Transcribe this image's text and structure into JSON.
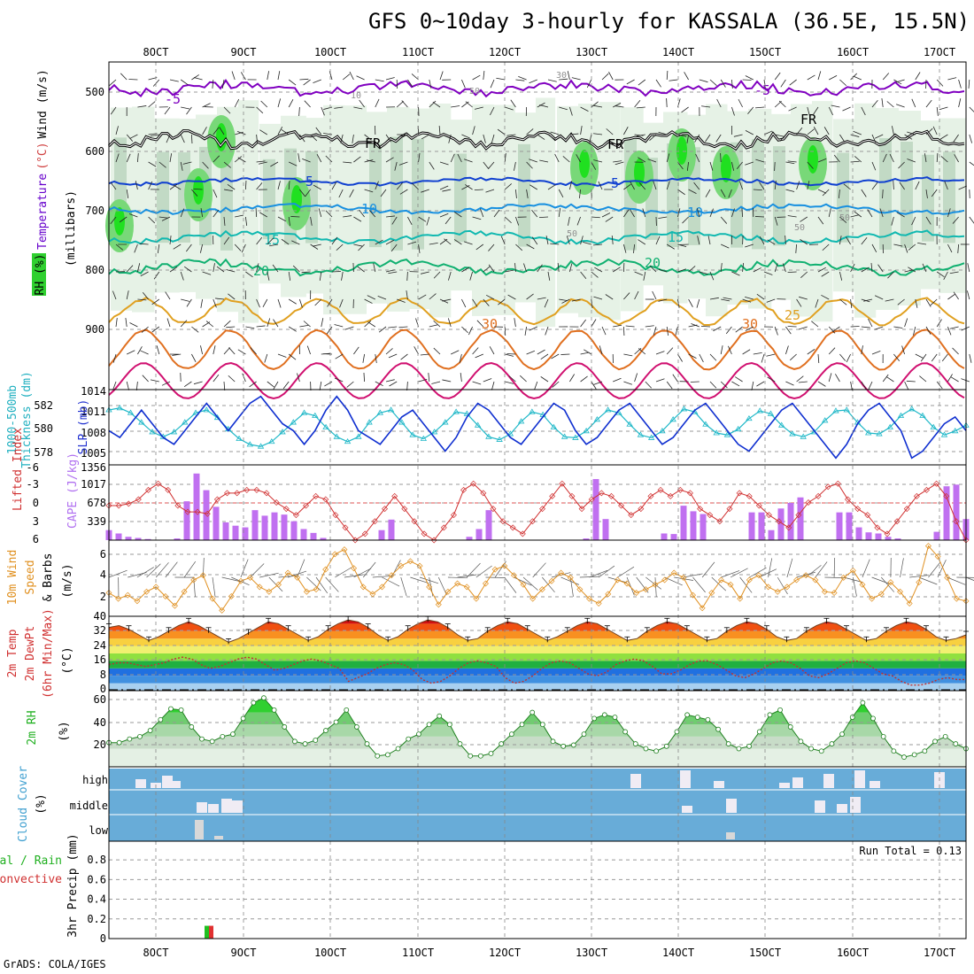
{
  "title": "GFS 0~10day 3-hourly for KASSALA (36.5E, 15.5N)",
  "footer": "GrADS: COLA/IGES",
  "date_ticks": [
    "8OCT",
    "9OCT",
    "10OCT",
    "11OCT",
    "12OCT",
    "13OCT",
    "14OCT",
    "15OCT",
    "16OCT",
    "17OCT"
  ],
  "panels": {
    "upper_air": {
      "ylabels": [
        {
          "text": "RH (%)",
          "color": "#00b000"
        },
        {
          "text": "Temperature",
          "color": "#6600cc"
        },
        {
          "text": "(°C)",
          "color": "#d04040"
        },
        {
          "text": "Wind (m/s)",
          "color": "#000000"
        },
        {
          "text": "(millibars)",
          "color": "#000000"
        }
      ],
      "pressure_ticks": [
        "500",
        "600",
        "700",
        "800",
        "900"
      ],
      "contour_labels": [
        {
          "text": "-5",
          "color": "#8000c0"
        },
        {
          "text": "-5",
          "color": "#8000c0"
        },
        {
          "text": "FR",
          "color": "#000000"
        },
        {
          "text": "FR",
          "color": "#000000"
        },
        {
          "text": "FR",
          "color": "#000000"
        },
        {
          "text": "5",
          "color": "#1040d0"
        },
        {
          "text": "5",
          "color": "#1040d0"
        },
        {
          "text": "10",
          "color": "#1890e0"
        },
        {
          "text": "10",
          "color": "#1890e0"
        },
        {
          "text": "15",
          "color": "#10b8b0"
        },
        {
          "text": "15",
          "color": "#10b8b0"
        },
        {
          "text": "20",
          "color": "#10b070"
        },
        {
          "text": "20",
          "color": "#10b070"
        },
        {
          "text": "30",
          "color": "#e07020"
        },
        {
          "text": "30",
          "color": "#e07020"
        },
        {
          "text": "25",
          "color": "#e0a020"
        },
        {
          "text": "30",
          "color": "#909090"
        },
        {
          "text": "10",
          "color": "#909090"
        },
        {
          "text": "50",
          "color": "#909090"
        },
        {
          "text": "50",
          "color": "#909090"
        },
        {
          "text": "50",
          "color": "#909090"
        },
        {
          "text": "50",
          "color": "#909090"
        }
      ]
    },
    "thickness_slp": {
      "ylabels": [
        {
          "text": "1000-500mb",
          "color": "#20b0c0"
        },
        {
          "text": "Thickness (dm)",
          "color": "#20b0c0"
        },
        {
          "text": "SLP (mb)",
          "color": "#2030d0"
        }
      ],
      "left_ticks": [
        "582",
        "580",
        "578"
      ],
      "right_ticks": [
        "1014",
        "1011",
        "1008",
        "1005"
      ]
    },
    "cape_li": {
      "ylabels": [
        {
          "text": "Lifted Index",
          "color": "#d03030"
        },
        {
          "text": "CAPE (J/kg)",
          "color": "#b070f0"
        }
      ],
      "left_ticks": [
        "-6",
        "-3",
        "0",
        "3",
        "6"
      ],
      "right_ticks": [
        "1356",
        "1017",
        "678",
        "339"
      ]
    },
    "wind10": {
      "ylabels": [
        {
          "text": "10m Wind",
          "color": "#e09020"
        },
        {
          "text": "Speed",
          "color": "#e09020"
        },
        {
          "text": "& Barbs",
          "color": "#000000"
        },
        {
          "text": "(m/s)",
          "color": "#000000"
        }
      ],
      "ticks": [
        "6",
        "4",
        "2"
      ]
    },
    "temp2m": {
      "ylabels": [
        {
          "text": "2m Temp",
          "color": "#d03030"
        },
        {
          "text": "2m DewPt",
          "color": "#d03030"
        },
        {
          "text": "(6hr Min/Max)",
          "color": "#d03030"
        },
        {
          "text": "(°C)",
          "color": "#000000"
        }
      ],
      "ticks": [
        "40",
        "32",
        "24",
        "16",
        "8",
        "0"
      ]
    },
    "rh2m": {
      "ylabels": [
        {
          "text": "2m RH",
          "color": "#20b020"
        },
        {
          "text": "(%)",
          "color": "#000000"
        }
      ],
      "ticks": [
        "60",
        "40",
        "20"
      ]
    },
    "cloud": {
      "ylabels": [
        {
          "text": "Cloud Cover",
          "color": "#40a0d0"
        },
        {
          "text": "(%)",
          "color": "#000000"
        }
      ],
      "levels": [
        "high",
        "middle",
        "low"
      ]
    },
    "precip": {
      "ylabels": [
        {
          "text": "Total / Rain",
          "color": "#20b020"
        },
        {
          "text": "Convective",
          "color": "#d03030"
        },
        {
          "text": "3hr Precip (mm)",
          "color": "#000000"
        }
      ],
      "ticks": [
        "0.8",
        "0.6",
        "0.4",
        "0.2",
        "0"
      ],
      "run_total": "Run Total = 0.13"
    }
  },
  "chart_data": {
    "type": "line",
    "slp_series": [
      1008,
      1007,
      1009,
      1011,
      1009,
      1007,
      1006,
      1008,
      1010,
      1012,
      1010,
      1008,
      1010,
      1012,
      1013,
      1011,
      1009,
      1008,
      1006,
      1008,
      1011,
      1013,
      1011,
      1008,
      1007,
      1006,
      1008,
      1010,
      1011,
      1009,
      1007,
      1005,
      1007,
      1010,
      1012,
      1011,
      1009,
      1007,
      1006,
      1008,
      1010,
      1012,
      1011,
      1008,
      1006,
      1007,
      1009,
      1011,
      1012,
      1010,
      1008,
      1006,
      1007,
      1009,
      1011,
      1012,
      1010,
      1008,
      1006,
      1005,
      1007,
      1009,
      1011,
      1012,
      1010,
      1008,
      1006,
      1004,
      1006,
      1009,
      1011,
      1012,
      1010,
      1008,
      1004,
      1005,
      1007,
      1009,
      1010,
      1008
    ],
    "thickness_series": [
      581.8,
      582.0,
      581.5,
      580.5,
      579.5,
      579.0,
      579.5,
      580.5,
      581.5,
      581.8,
      581.0,
      579.8,
      578.8,
      578.2,
      578.0,
      578.5,
      579.5,
      580.5,
      581.5,
      581.2,
      580.0,
      579.0,
      578.5,
      579.0,
      580.5,
      581.5,
      581.8,
      580.5,
      579.2,
      578.8,
      579.5,
      580.5,
      581.6,
      581.4,
      580.2,
      579.0,
      578.7,
      579.3,
      580.6,
      581.6,
      581.3,
      580.0,
      579.0,
      578.9,
      579.6,
      580.8,
      581.8,
      581.5,
      580.3,
      579.2,
      578.9,
      579.6,
      580.8,
      581.9,
      581.6,
      580.3,
      579.4,
      579.2,
      579.8,
      580.9,
      581.7,
      581.4,
      580.2,
      579.3,
      579.0,
      579.5,
      580.7,
      581.7,
      581.8,
      580.5,
      579.4,
      579.3,
      580.0,
      581.2,
      581.9,
      581.2,
      580.0,
      579.2,
      579.6,
      580.2
    ],
    "cape_series": [
      180,
      120,
      60,
      40,
      20,
      0,
      0,
      30,
      700,
      1200,
      900,
      600,
      320,
      260,
      230,
      540,
      440,
      500,
      460,
      340,
      200,
      130,
      40,
      0,
      0,
      0,
      0,
      0,
      180,
      370,
      0,
      0,
      0,
      0,
      0,
      0,
      0,
      60,
      200,
      540,
      0,
      0,
      0,
      0,
      0,
      0,
      0,
      0,
      0,
      30,
      1100,
      380,
      0,
      0,
      0,
      0,
      0,
      120,
      110,
      620,
      520,
      470,
      0,
      0,
      0,
      0,
      500,
      500,
      180,
      570,
      670,
      770,
      0,
      0,
      0,
      500,
      500,
      230,
      140,
      120,
      60,
      30,
      0,
      0,
      0,
      150,
      970,
      1000,
      380
    ],
    "li_series": [
      0.5,
      0.5,
      0.2,
      -0.5,
      -2,
      -3,
      -2,
      0.5,
      1.5,
      1.5,
      1.8,
      -0.5,
      -1.5,
      -1.5,
      -2,
      -2,
      -1.5,
      0,
      1,
      2,
      0.5,
      -1,
      -0.5,
      2,
      4,
      6,
      5,
      3,
      1,
      -1,
      1,
      3,
      5,
      6,
      4,
      2,
      -2,
      -3,
      -1.5,
      1,
      3,
      4,
      5,
      3,
      1,
      -1,
      -3,
      -1,
      1,
      -0.5,
      -1.5,
      -1,
      0.5,
      2,
      1,
      -1,
      -2,
      -1,
      -2,
      -1.5,
      1,
      2,
      3,
      1,
      -1.5,
      -1,
      0.5,
      2,
      3,
      4,
      2,
      0,
      -1,
      -2.5,
      -3,
      -0.5,
      1,
      2,
      4,
      5,
      3,
      1,
      -1,
      -2,
      -3,
      -1,
      3,
      6
    ],
    "wind_speed_series": [
      2.5,
      2.0,
      2.3,
      1.8,
      2.6,
      3.0,
      2.2,
      1.4,
      2.6,
      3.6,
      4.0,
      2.0,
      1.0,
      2.2,
      3.5,
      3.8,
      3.0,
      2.6,
      3.2,
      4.2,
      3.8,
      2.6,
      2.8,
      4.5,
      5.8,
      6.2,
      4.6,
      3.0,
      2.4,
      3.0,
      4.0,
      4.8,
      5.2,
      4.8,
      3.0,
      1.5,
      2.6,
      3.3,
      3.0,
      2.0,
      3.3,
      4.5,
      4.8,
      4.0,
      3.2,
      2.0,
      2.8,
      3.5,
      4.2,
      3.8,
      2.8,
      2.0,
      1.6,
      2.4,
      3.6,
      3.3,
      2.5,
      2.8,
      3.2,
      3.6,
      4.2,
      3.8,
      2.3,
      1.2,
      2.5,
      3.6,
      3.2,
      2.0,
      3.6,
      4.0,
      3.0,
      2.6,
      3.0,
      3.6,
      4.0,
      3.6,
      2.6,
      2.5,
      3.8,
      4.4,
      3.2,
      2.0,
      2.4,
      3.4,
      2.6,
      1.6,
      3.4,
      6.5,
      5.6,
      3.8,
      2.0,
      1.8
    ],
    "temp_max_series": [
      34,
      35,
      33,
      30,
      27,
      29,
      32,
      35,
      37,
      35,
      32,
      29,
      26,
      28,
      31,
      34,
      37,
      36,
      33,
      30,
      27,
      29,
      33,
      36,
      38,
      37,
      34,
      30,
      27,
      29,
      33,
      36,
      38,
      37,
      34,
      30,
      27,
      28,
      32,
      35,
      37,
      36,
      33,
      30,
      27,
      29,
      32,
      35,
      37,
      36,
      33,
      30,
      27,
      28,
      32,
      35,
      37,
      36,
      33,
      30,
      27,
      28,
      32,
      35,
      37,
      36,
      33,
      29,
      27,
      28,
      32,
      35,
      37,
      36,
      33,
      30,
      27,
      28,
      32,
      35,
      37,
      36,
      33,
      29,
      27,
      28,
      30
    ],
    "dewpt_series": [
      14,
      15,
      15,
      14,
      13,
      14,
      15,
      17,
      18,
      17,
      14,
      12,
      13,
      15,
      17,
      18,
      17,
      14,
      11,
      12,
      14,
      16,
      17,
      16,
      14,
      12,
      5,
      7,
      9,
      12,
      14,
      15,
      14,
      11,
      6,
      4,
      5,
      8,
      12,
      15,
      16,
      15,
      13,
      7,
      4,
      5,
      8,
      12,
      15,
      16,
      15,
      12,
      9,
      8,
      10,
      14,
      16,
      17,
      16,
      13,
      9,
      9,
      11,
      14,
      16,
      16,
      14,
      11,
      8,
      7,
      9,
      12,
      15,
      16,
      15,
      12,
      8,
      7,
      9,
      12,
      15,
      16,
      15,
      12,
      9,
      8,
      5,
      3,
      3,
      4,
      6,
      7,
      6,
      6
    ],
    "rh_series": [
      25,
      25,
      28,
      30,
      35,
      44,
      53,
      52,
      38,
      28,
      26,
      30,
      32,
      45,
      58,
      62,
      52,
      38,
      26,
      24,
      27,
      35,
      42,
      52,
      38,
      24,
      14,
      15,
      20,
      28,
      32,
      40,
      47,
      40,
      24,
      14,
      14,
      16,
      24,
      32,
      40,
      50,
      40,
      26,
      22,
      23,
      32,
      45,
      48,
      46,
      34,
      24,
      20,
      18,
      22,
      34,
      48,
      46,
      44,
      36,
      24,
      20,
      22,
      34,
      48,
      52,
      38,
      26,
      20,
      18,
      24,
      32,
      46,
      58,
      45,
      30,
      18,
      13,
      15,
      18,
      26,
      30,
      24,
      20
    ]
  }
}
